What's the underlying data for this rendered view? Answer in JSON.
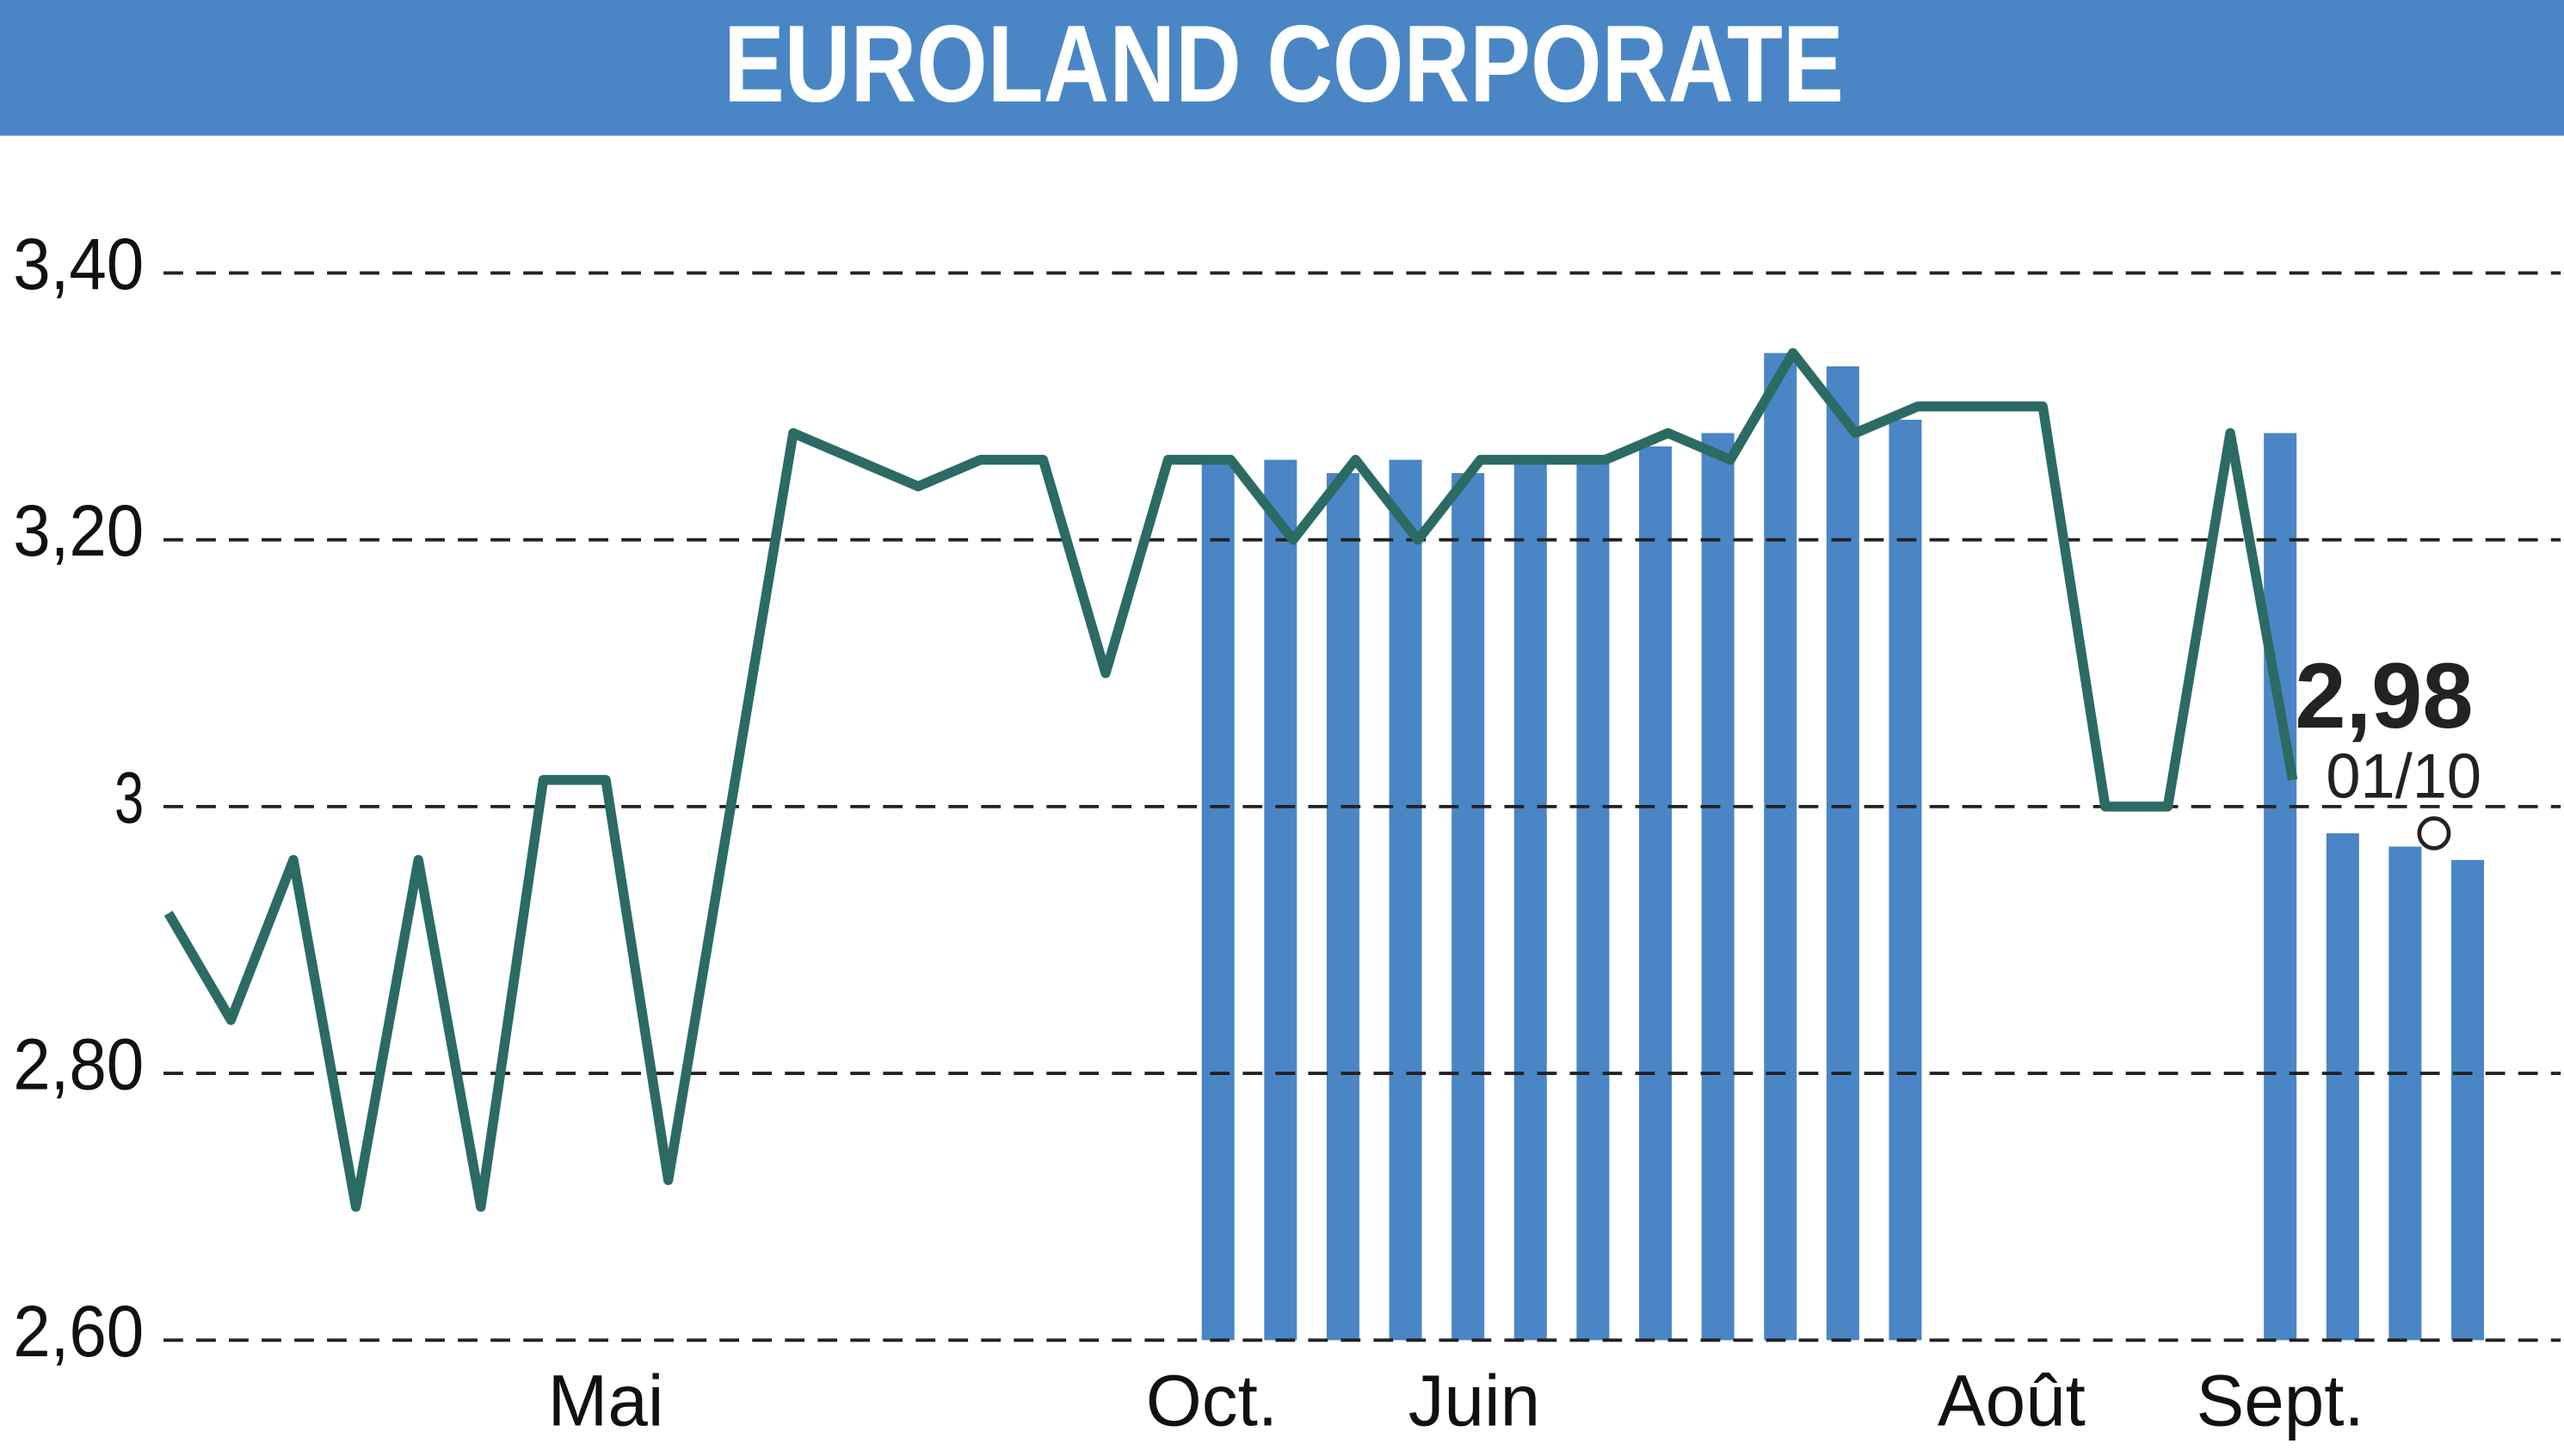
{
  "chart_data": {
    "type": "line",
    "title": "EUROLAND CORPORATE",
    "x": [
      0,
      1,
      2,
      3,
      4,
      5,
      6,
      7,
      8,
      9,
      10,
      11,
      12,
      13,
      14,
      15,
      16,
      17,
      18,
      19,
      20,
      21,
      22,
      23,
      24,
      25,
      26,
      27,
      28,
      29,
      30,
      31,
      32,
      33,
      34,
      35,
      36
    ],
    "series": [
      {
        "color": "#2b6b64",
        "values": [
          2.92,
          2.84,
          2.96,
          2.7,
          2.96,
          2.7,
          3.02,
          3.02,
          2.72,
          3.0,
          3.28,
          3.26,
          3.24,
          3.26,
          3.26,
          3.1,
          3.26,
          3.26,
          3.2,
          3.26,
          3.2,
          3.26,
          3.26,
          3.26,
          3.28,
          3.26,
          3.34,
          3.28,
          3.3,
          3.3,
          3.3,
          3.0,
          3.0,
          3.28,
          3.02,
          null,
          2.98
        ]
      }
    ],
    "bars": {
      "color": "#4a86c5",
      "x": [
        16.8,
        17.8,
        18.8,
        19.8,
        20.8,
        21.8,
        22.8,
        23.8,
        24.8,
        25.8,
        26.8,
        27.8,
        33.8,
        34.8,
        35.8,
        36.8
      ],
      "values": [
        3.26,
        3.26,
        3.25,
        3.26,
        3.25,
        3.26,
        3.26,
        3.27,
        3.28,
        3.34,
        3.33,
        3.29,
        3.28,
        2.98,
        2.97,
        2.96
      ]
    },
    "last_value_label": "2,98",
    "last_date": "01/10",
    "xlim": [
      0,
      37.4
    ],
    "ylim": [
      2.6,
      3.4
    ],
    "xticks": [
      {
        "value": 7.0,
        "label": "Mai"
      },
      {
        "value": 16.7,
        "label": "Oct."
      },
      {
        "value": 20.9,
        "label": "Juin"
      },
      {
        "value": 29.5,
        "label": "Août"
      },
      {
        "value": 33.8,
        "label": "Sept."
      }
    ],
    "yticks": [
      {
        "value": 2.6,
        "label": "2,60"
      },
      {
        "value": 2.8,
        "label": "2,80"
      },
      3,
      {
        "value": 3.2,
        "label": "3,20"
      },
      {
        "value": 3.4,
        "label": "3,40"
      }
    ],
    "grid": true
  }
}
